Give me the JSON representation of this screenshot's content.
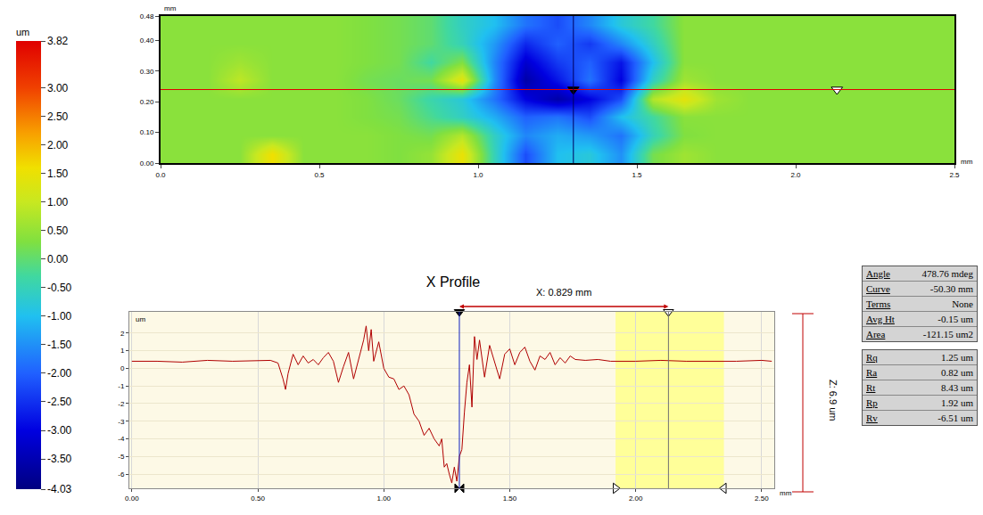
{
  "chart_data": [
    {
      "type": "heatmap",
      "x": [
        0.05,
        0.15,
        0.25,
        0.35,
        0.45,
        0.55,
        0.65,
        0.75,
        0.85,
        0.95,
        1.05,
        1.15,
        1.25,
        1.35,
        1.45,
        1.55,
        1.65,
        1.75,
        1.85,
        1.95,
        2.05,
        2.15,
        2.25,
        2.35,
        2.45
      ],
      "y": [
        0.03,
        0.09,
        0.15,
        0.21,
        0.27,
        0.33,
        0.39,
        0.45
      ],
      "z": [
        [
          0.4,
          0.4,
          0.4,
          1.6,
          0.4,
          0.4,
          0.4,
          0.3,
          0.5,
          1.5,
          -0.5,
          -2.2,
          -1.0,
          -0.8,
          -1.5,
          0.2,
          0.6,
          0.4,
          0.4,
          0.4,
          0.4,
          0.4,
          0.4,
          0.4,
          0.4
        ],
        [
          0.4,
          0.4,
          0.4,
          0.4,
          0.4,
          0.4,
          0.4,
          0.3,
          0.2,
          0.8,
          -0.6,
          -1.6,
          -1.2,
          -1.4,
          -1.8,
          -0.5,
          0.3,
          0.4,
          0.4,
          0.4,
          0.4,
          0.4,
          0.4,
          0.4,
          0.4
        ],
        [
          0.4,
          0.4,
          0.4,
          0.4,
          0.4,
          0.4,
          0.3,
          0.2,
          -0.2,
          -0.6,
          -1.2,
          -2.0,
          -1.8,
          -2.2,
          -1.0,
          -0.3,
          0.4,
          0.4,
          0.4,
          0.4,
          0.4,
          0.4,
          0.4,
          0.4,
          0.4
        ],
        [
          0.4,
          0.4,
          0.4,
          0.4,
          0.4,
          0.4,
          0.3,
          0.1,
          -0.4,
          -0.8,
          -1.8,
          -3.0,
          -3.6,
          -3.0,
          -2.2,
          0.8,
          1.4,
          0.6,
          0.4,
          0.4,
          0.4,
          0.4,
          0.4,
          0.4,
          0.4
        ],
        [
          0.4,
          0.4,
          0.9,
          0.4,
          0.4,
          0.4,
          0.2,
          0.1,
          0.2,
          1.4,
          -1.5,
          -3.6,
          -2.8,
          -1.8,
          -3.0,
          -0.6,
          0.6,
          0.4,
          0.4,
          0.4,
          0.4,
          0.4,
          0.4,
          0.4,
          0.4
        ],
        [
          0.4,
          0.4,
          0.6,
          0.4,
          0.4,
          0.4,
          0.3,
          0.2,
          -0.3,
          0.3,
          -1.6,
          -3.2,
          -2.4,
          -2.0,
          -2.8,
          -1.0,
          0.4,
          0.4,
          0.4,
          0.4,
          0.4,
          0.4,
          0.4,
          0.4,
          0.4
        ],
        [
          0.4,
          0.4,
          0.4,
          0.4,
          0.4,
          0.4,
          0.3,
          0.2,
          0.0,
          -0.5,
          -1.4,
          -2.6,
          -2.0,
          -2.4,
          -1.6,
          -0.6,
          0.4,
          0.4,
          0.4,
          0.4,
          0.4,
          0.4,
          0.4,
          0.4,
          0.4
        ],
        [
          0.4,
          0.4,
          0.4,
          0.4,
          0.4,
          0.4,
          0.3,
          0.2,
          0.0,
          -0.6,
          -1.0,
          -1.8,
          -2.2,
          -1.6,
          -0.8,
          -0.3,
          0.4,
          0.4,
          0.4,
          0.4,
          0.4,
          0.4,
          0.4,
          0.4,
          0.4
        ]
      ],
      "xlim": [
        0,
        2.5
      ],
      "ylim": [
        0,
        0.48
      ],
      "xticks": [
        {
          "value": 0,
          "label": "0.0"
        },
        0.5,
        {
          "value": 1,
          "label": "1.0"
        },
        1.5,
        {
          "value": 2,
          "label": "2.0"
        },
        2.5
      ],
      "yticks": [
        {
          "value": 0,
          "label": "0.00"
        },
        {
          "value": 0.1,
          "label": "0.10"
        },
        {
          "value": 0.2,
          "label": "0.20"
        },
        {
          "value": 0.3,
          "label": "0.30"
        },
        {
          "value": 0.4,
          "label": "0.40"
        },
        0.48
      ],
      "x_label": "mm",
      "y_label": "mm",
      "colorbar_label": "um",
      "colorbar_range": [
        -4.03,
        3.82
      ],
      "colorbar_ticks": [
        3.82,
        {
          "value": 3,
          "label": "3.00"
        },
        {
          "value": 2.5,
          "label": "2.50"
        },
        {
          "value": 2,
          "label": "2.00"
        },
        {
          "value": 1.5,
          "label": "1.50"
        },
        {
          "value": 1,
          "label": "1.00"
        },
        {
          "value": 0.5,
          "label": "0.50"
        },
        {
          "value": 0,
          "label": "0.00"
        },
        {
          "value": -0.5,
          "label": "-0.50"
        },
        {
          "value": -1,
          "label": "-1.00"
        },
        {
          "value": -1.5,
          "label": "-1.50"
        },
        {
          "value": -2,
          "label": "-2.00"
        },
        {
          "value": -2.5,
          "label": "-2.50"
        },
        {
          "value": -3,
          "label": "-3.00"
        },
        {
          "value": -3.5,
          "label": "-3.50"
        },
        -4.03
      ],
      "cursors": [
        1.3,
        2.13
      ],
      "cursor_y": 0.24
    },
    {
      "type": "line",
      "title": "X Profile",
      "x": [
        0.0,
        0.1,
        0.2,
        0.3,
        0.4,
        0.5,
        0.55,
        0.58,
        0.6,
        0.61,
        0.62,
        0.64,
        0.66,
        0.68,
        0.7,
        0.72,
        0.74,
        0.76,
        0.78,
        0.8,
        0.82,
        0.84,
        0.86,
        0.88,
        0.9,
        0.92,
        0.93,
        0.94,
        0.95,
        0.96,
        0.98,
        1.0,
        1.02,
        1.04,
        1.06,
        1.08,
        1.1,
        1.12,
        1.14,
        1.16,
        1.18,
        1.2,
        1.22,
        1.23,
        1.24,
        1.25,
        1.26,
        1.27,
        1.28,
        1.29,
        1.3,
        1.31,
        1.32,
        1.33,
        1.34,
        1.35,
        1.36,
        1.37,
        1.38,
        1.4,
        1.42,
        1.44,
        1.46,
        1.48,
        1.5,
        1.52,
        1.54,
        1.56,
        1.58,
        1.6,
        1.62,
        1.64,
        1.66,
        1.68,
        1.7,
        1.72,
        1.74,
        1.76,
        1.8,
        1.85,
        1.9,
        2.0,
        2.1,
        2.2,
        2.3,
        2.4,
        2.5,
        2.54
      ],
      "values": [
        0.4,
        0.4,
        0.35,
        0.45,
        0.4,
        0.45,
        0.45,
        0.3,
        -0.6,
        -1.2,
        -0.3,
        0.8,
        0.2,
        0.7,
        0.3,
        0.5,
        0.2,
        0.6,
        0.9,
        0.4,
        -0.8,
        0.1,
        0.9,
        -0.6,
        0.5,
        1.6,
        2.4,
        1.0,
        2.2,
        0.4,
        1.5,
        0.0,
        -0.5,
        -0.6,
        -1.2,
        -1.0,
        -1.5,
        -2.6,
        -3.0,
        -3.8,
        -3.4,
        -4.0,
        -4.4,
        -4.0,
        -5.6,
        -5.4,
        -6.0,
        -6.5,
        -5.6,
        -6.4,
        -5.0,
        -4.6,
        -2.5,
        -0.8,
        0.2,
        -2.2,
        1.8,
        0.5,
        1.6,
        -0.5,
        1.3,
        0.3,
        -0.6,
        0.8,
        1.1,
        0.2,
        0.9,
        1.2,
        0.4,
        -0.1,
        0.7,
        0.5,
        0.9,
        0.2,
        0.6,
        0.3,
        0.7,
        0.5,
        0.45,
        0.5,
        0.4,
        0.4,
        0.45,
        0.4,
        0.4,
        0.4,
        0.45,
        0.4
      ],
      "color": "#b00000",
      "xlim": [
        -0.01,
        2.55
      ],
      "ylim": [
        -6.8,
        3.2
      ],
      "xticks": [
        {
          "value": 0,
          "label": "0.00"
        },
        {
          "value": 0.5,
          "label": "0.50"
        },
        {
          "value": 1,
          "label": "1.00"
        },
        {
          "value": 1.5,
          "label": "1.50"
        },
        {
          "value": 2,
          "label": "2.00"
        },
        {
          "value": 2.5,
          "label": "2.50"
        }
      ],
      "yticks": [
        2,
        1,
        0,
        -1,
        -2,
        -3,
        -4,
        -5,
        -6
      ],
      "x_label": "mm",
      "y_label": "um",
      "grid": true,
      "cursors": [
        1.3,
        2.13
      ],
      "band": [
        1.92,
        2.35
      ],
      "annotations": [
        "X: 0.829 mm",
        "Z: 6.9 um"
      ]
    }
  ],
  "stats_tables": [
    [
      [
        "Angle",
        "478.76 mdeg"
      ],
      [
        "Curve",
        "-50.30 mm"
      ],
      [
        "Terms",
        "None"
      ],
      [
        "Avg Ht",
        "-0.15 um"
      ],
      [
        "Area",
        "-121.15 um2"
      ]
    ],
    [
      [
        "Rq",
        "1.25 um"
      ],
      [
        "Ra",
        "0.82 um"
      ],
      [
        "Rt",
        "8.43 um"
      ],
      [
        "Rp",
        "1.92 um"
      ],
      [
        "Rv",
        "-6.51 um"
      ]
    ]
  ]
}
